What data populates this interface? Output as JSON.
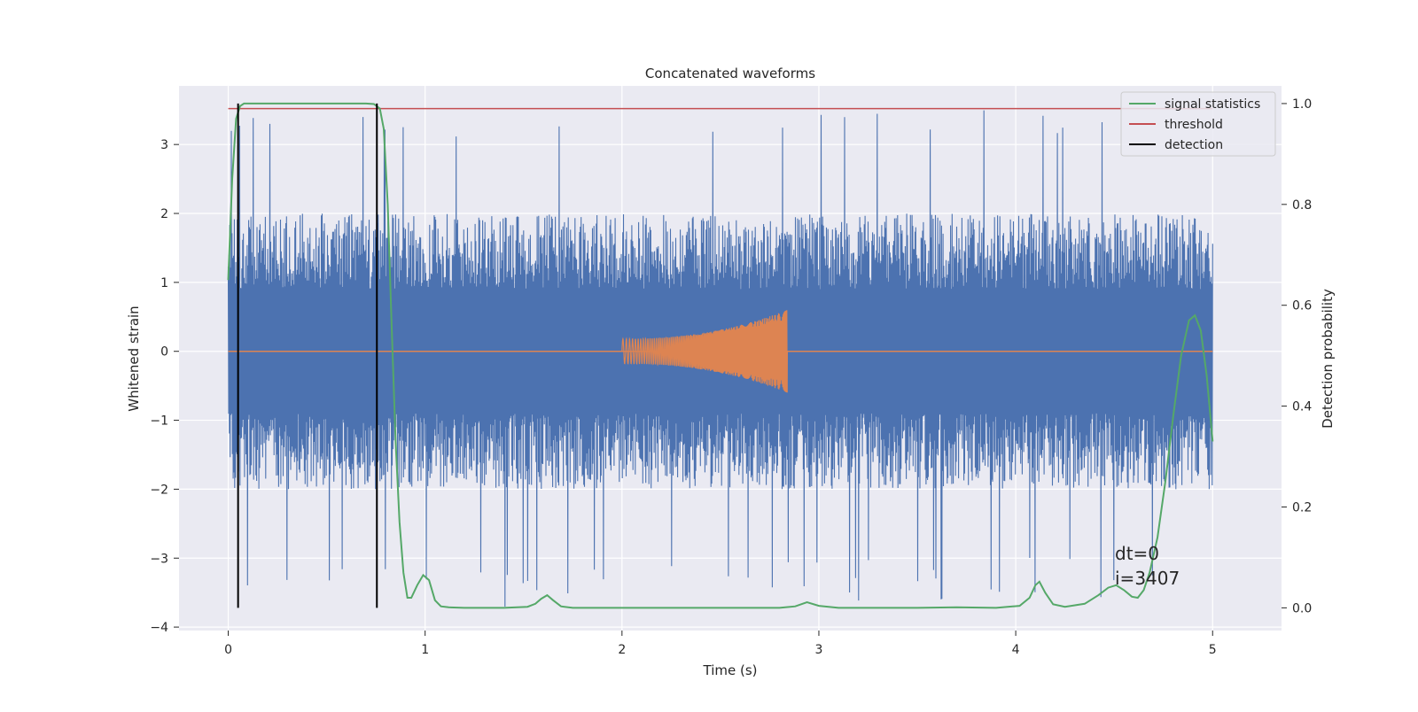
{
  "chart_data": {
    "type": "line",
    "title": "Concatenated waveforms",
    "xlabel": "Time (s)",
    "ylabel": "Whitened strain",
    "y2label": "Detection probability",
    "xlim": [
      -0.25,
      5.35
    ],
    "ylim": [
      -4.05,
      3.85
    ],
    "y2lim": [
      -0.045,
      1.035
    ],
    "xticks": [
      0,
      1,
      2,
      3,
      4,
      5
    ],
    "xtick_labels": [
      "0",
      "1",
      "2",
      "3",
      "4",
      "5"
    ],
    "yticks": [
      -4,
      -3,
      -2,
      -1,
      0,
      1,
      2,
      3
    ],
    "ytick_labels": [
      "−4",
      "−3",
      "−2",
      "−1",
      "0",
      "1",
      "2",
      "3"
    ],
    "y2ticks": [
      0.0,
      0.2,
      0.4,
      0.6,
      0.8,
      1.0
    ],
    "y2tick_labels": [
      "0.0",
      "0.2",
      "0.4",
      "0.6",
      "0.8",
      "1.0"
    ],
    "grid": true,
    "legend_position": "top-right",
    "annotations": [
      "dt=0",
      "i=3407"
    ],
    "colors": {
      "background": "#eaeaf2",
      "noise": "#4c72b0",
      "injection": "#dd8452",
      "signal_statistics": "#55a868",
      "threshold": "#c44e52",
      "detection": "#000000"
    },
    "series": [
      {
        "name": "signal statistics",
        "axis": "right",
        "x": [
          0.0,
          0.02,
          0.04,
          0.06,
          0.08,
          0.1,
          0.2,
          0.4,
          0.6,
          0.7,
          0.74,
          0.77,
          0.79,
          0.81,
          0.83,
          0.85,
          0.87,
          0.89,
          0.91,
          0.93,
          0.96,
          0.99,
          1.02,
          1.05,
          1.08,
          1.12,
          1.2,
          1.4,
          1.52,
          1.56,
          1.59,
          1.62,
          1.65,
          1.69,
          1.75,
          2.0,
          2.5,
          2.8,
          2.88,
          2.94,
          3.0,
          3.1,
          3.5,
          3.7,
          3.9,
          4.02,
          4.07,
          4.1,
          4.12,
          4.15,
          4.19,
          4.25,
          4.35,
          4.42,
          4.47,
          4.51,
          4.55,
          4.59,
          4.62,
          4.65,
          4.68,
          4.72,
          4.76,
          4.8,
          4.84,
          4.88,
          4.91,
          4.94,
          4.97,
          5.0
        ],
        "values": [
          0.65,
          0.85,
          0.97,
          0.995,
          1.0,
          1.0,
          1.0,
          1.0,
          1.0,
          1.0,
          0.999,
          0.99,
          0.95,
          0.8,
          0.56,
          0.33,
          0.17,
          0.07,
          0.02,
          0.02,
          0.045,
          0.065,
          0.055,
          0.015,
          0.003,
          0.001,
          0.0,
          0.0,
          0.002,
          0.008,
          0.018,
          0.025,
          0.015,
          0.003,
          0.0,
          0.0,
          0.0,
          0.0,
          0.003,
          0.011,
          0.004,
          0.0,
          0.0,
          0.001,
          0.0,
          0.004,
          0.02,
          0.045,
          0.052,
          0.03,
          0.007,
          0.002,
          0.008,
          0.025,
          0.04,
          0.045,
          0.035,
          0.022,
          0.02,
          0.035,
          0.07,
          0.14,
          0.25,
          0.38,
          0.5,
          0.57,
          0.58,
          0.55,
          0.46,
          0.33
        ]
      },
      {
        "name": "threshold",
        "axis": "right",
        "x": [
          0,
          5
        ],
        "values": [
          0.99,
          0.99
        ]
      },
      {
        "name": "detection",
        "axis": "right",
        "segments": [
          [
            0.05,
            0.0,
            1.0
          ],
          [
            0.755,
            0.0,
            1.0
          ]
        ]
      }
    ],
    "noise_trace": {
      "axis": "left",
      "x_range": [
        0,
        5
      ],
      "typical_extent": [
        -2.0,
        2.0
      ],
      "peak_max": 3.5,
      "peak_min": -3.75,
      "quiet_band": [
        -0.85,
        0.85
      ]
    },
    "injected_waveform": {
      "axis": "left",
      "t_start": 2.0,
      "t_end": 2.84,
      "amplitude_start": 0.18,
      "amplitude_end": 0.6,
      "baseline": 0.0
    }
  }
}
